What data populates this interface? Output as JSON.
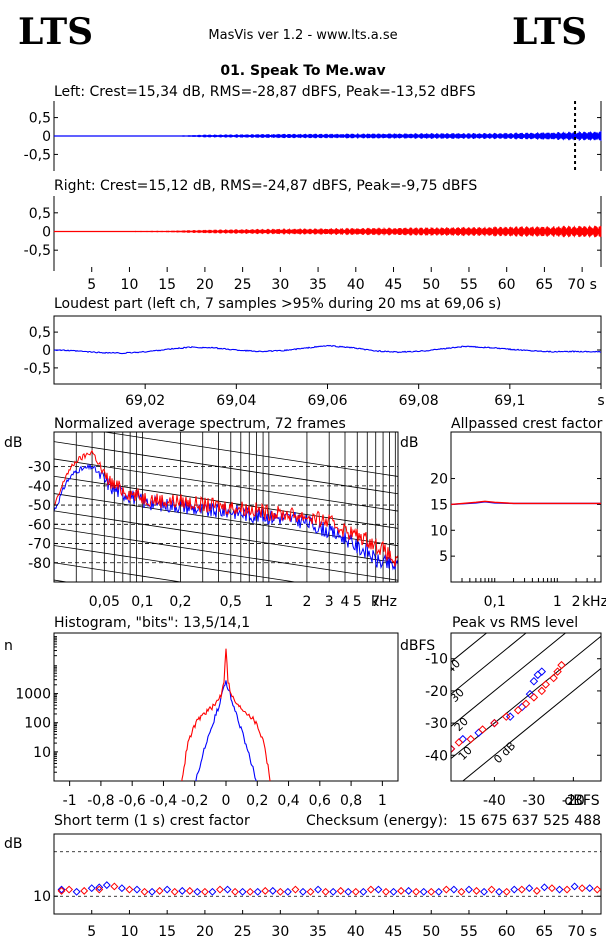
{
  "header": {
    "logo_left": "LTS",
    "logo_right": "LTS",
    "app_title": "MasVis ver 1.2 - www.lts.a.se",
    "file_name": "01. Speak To Me.wav"
  },
  "colors": {
    "left": "#0000ff",
    "right": "#ff0000",
    "axis": "#000000"
  },
  "chart_data": [
    {
      "type": "line",
      "title": "Left: Crest=15,34 dB, RMS=-28,87 dBFS, Peak=-13,52 dBFS",
      "series": [
        {
          "name": "Left",
          "color": "#0000ff",
          "envelope_x": [
            0,
            16,
            20,
            30,
            40,
            50,
            60,
            66,
            72
          ],
          "envelope_amp": [
            0.004,
            0.01,
            0.04,
            0.06,
            0.07,
            0.08,
            0.09,
            0.11,
            0.14
          ]
        }
      ],
      "xlim": [
        0,
        72.5
      ],
      "ylim": [
        -0.95,
        0.95
      ],
      "ytick_labels": [
        "0,5",
        "0",
        "-0,5"
      ],
      "ytick_values": [
        0.5,
        0,
        -0.5
      ],
      "marker_x": 69.06
    },
    {
      "type": "line",
      "title": "Right: Crest=15,12 dB, RMS=-24,87 dBFS, Peak=-9,75 dBFS",
      "series": [
        {
          "name": "Right",
          "color": "#ff0000",
          "envelope_x": [
            0,
            15,
            20,
            30,
            40,
            50,
            60,
            70,
            72
          ],
          "envelope_amp": [
            0.004,
            0.02,
            0.05,
            0.08,
            0.1,
            0.12,
            0.14,
            0.16,
            0.17
          ]
        }
      ],
      "xlim": [
        0,
        72.5
      ],
      "ylim": [
        -0.95,
        0.95
      ],
      "ytick_labels": [
        "0,5",
        "0",
        "-0,5"
      ],
      "ytick_values": [
        0.5,
        0,
        -0.5
      ],
      "xtick_labels": [
        "5",
        "10",
        "15",
        "20",
        "25",
        "30",
        "35",
        "40",
        "45",
        "50",
        "55",
        "60",
        "65",
        "70 s"
      ],
      "xtick_values": [
        5,
        10,
        15,
        20,
        25,
        30,
        35,
        40,
        45,
        50,
        55,
        60,
        65,
        70
      ]
    },
    {
      "type": "line",
      "title": "Loudest part (left  ch, 7 samples >95% during 20 ms at 69,06 s)",
      "series": [
        {
          "name": "Left",
          "color": "#0000ff",
          "x": [
            69.001,
            69.005,
            69.01,
            69.015,
            69.02,
            69.025,
            69.03,
            69.035,
            69.04,
            69.045,
            69.05,
            69.055,
            69.06,
            69.065,
            69.07,
            69.075,
            69.08,
            69.085,
            69.09,
            69.095,
            69.1,
            69.105,
            69.11,
            69.115,
            69.12
          ],
          "y": [
            0.0,
            -0.03,
            -0.07,
            -0.09,
            -0.05,
            0.02,
            0.08,
            0.06,
            0.0,
            -0.04,
            -0.02,
            0.05,
            0.12,
            0.07,
            -0.02,
            -0.06,
            -0.04,
            0.03,
            0.1,
            0.07,
            0.02,
            -0.02,
            -0.05,
            -0.04,
            -0.05
          ]
        }
      ],
      "xlim": [
        69.0,
        69.12
      ],
      "ylim": [
        -0.95,
        0.95
      ],
      "ytick_labels": [
        "0,5",
        "0",
        "-0,5"
      ],
      "ytick_values": [
        0.5,
        0,
        -0.5
      ],
      "xtick_labels": [
        "69,02",
        "69,04",
        "69,06",
        "69,08",
        "69,1",
        "s"
      ],
      "xtick_values": [
        69.02,
        69.04,
        69.06,
        69.08,
        69.1,
        69.12
      ]
    },
    {
      "type": "line",
      "title": "Normalized average spectrum, 72 frames",
      "ylabel": "dB",
      "xlabel": "kHz",
      "xscale": "log",
      "xlim": [
        0.02,
        10.5
      ],
      "ylim": [
        -90,
        -12
      ],
      "ytick_labels": [
        "-30",
        "-40",
        "-50",
        "-60",
        "-70",
        "-80"
      ],
      "ytick_values": [
        -30,
        -40,
        -50,
        -60,
        -70,
        -80
      ],
      "xtick_labels": [
        "0,05",
        "0,1",
        "0,2",
        "0,5",
        "1",
        "2",
        "3",
        "4",
        "5",
        "7",
        "kHz"
      ],
      "xtick_values": [
        0.05,
        0.1,
        0.2,
        0.5,
        1,
        2,
        3,
        4,
        5,
        7,
        10
      ],
      "series": [
        {
          "name": "Left",
          "color": "#0000ff",
          "x": [
            0.02,
            0.025,
            0.03,
            0.04,
            0.05,
            0.06,
            0.08,
            0.1,
            0.15,
            0.2,
            0.3,
            0.5,
            0.7,
            1,
            1.5,
            2,
            3,
            4,
            5,
            6,
            7,
            8,
            10
          ],
          "y": [
            -53,
            -38,
            -32,
            -30,
            -37,
            -42,
            -45,
            -48,
            -50,
            -50,
            -53,
            -53,
            -55,
            -56,
            -57,
            -59,
            -64,
            -67,
            -72,
            -74,
            -79,
            -80,
            -82
          ]
        },
        {
          "name": "Right",
          "color": "#ff0000",
          "x": [
            0.02,
            0.025,
            0.03,
            0.04,
            0.05,
            0.06,
            0.08,
            0.1,
            0.15,
            0.2,
            0.3,
            0.5,
            0.7,
            1,
            1.5,
            2,
            3,
            4,
            5,
            6,
            7,
            8,
            10
          ],
          "y": [
            -51,
            -34,
            -27,
            -22,
            -35,
            -40,
            -44,
            -46,
            -48,
            -48,
            -50,
            -51,
            -52,
            -54,
            -55,
            -56,
            -59,
            -63,
            -66,
            -68,
            -71,
            -73,
            -80
          ]
        }
      ]
    },
    {
      "type": "line",
      "title": "Allpassed crest factor",
      "ylabel": "dB",
      "xlabel": "kHz",
      "xscale": "log",
      "xlim": [
        0.02,
        5
      ],
      "ylim": [
        0,
        29
      ],
      "ytick_labels": [
        "20",
        "15",
        "10",
        "5"
      ],
      "ytick_values": [
        20,
        15,
        10,
        5
      ],
      "xtick_labels": [
        "0,1",
        "1",
        "2",
        "kHz"
      ],
      "xtick_values": [
        0.1,
        1,
        2,
        4
      ],
      "series": [
        {
          "name": "Left",
          "color": "#0000ff",
          "x": [
            0.02,
            0.05,
            0.07,
            0.1,
            0.2,
            0.5,
            1,
            2,
            5
          ],
          "y": [
            15,
            15.3,
            15.5,
            15.3,
            15.2,
            15.2,
            15.2,
            15.2,
            15.2
          ]
        },
        {
          "name": "Right",
          "color": "#ff0000",
          "x": [
            0.02,
            0.05,
            0.07,
            0.1,
            0.2,
            0.5,
            1,
            2,
            5
          ],
          "y": [
            15,
            15.4,
            15.6,
            15.4,
            15.2,
            15.2,
            15.2,
            15.2,
            15.2
          ]
        }
      ]
    },
    {
      "type": "line",
      "title": "Histogram, \"bits\": 13,5/14,1",
      "ylabel": "n",
      "yscale": "log",
      "xlim": [
        -1.1,
        1.1
      ],
      "ylim": [
        1,
        120000
      ],
      "ytick_labels": [
        "1000",
        "100",
        "10"
      ],
      "ytick_values": [
        1000,
        100,
        10
      ],
      "xtick_labels": [
        "-1",
        "-0,8",
        "-0,6",
        "-0,4",
        "-0,2",
        "0",
        "0,2",
        "0,4",
        "0,6",
        "0,8",
        "1"
      ],
      "xtick_values": [
        -1,
        -0.8,
        -0.6,
        -0.4,
        -0.2,
        0,
        0.2,
        0.4,
        0.6,
        0.8,
        1
      ],
      "series": [
        {
          "name": "Left",
          "color": "#0000ff",
          "x": [
            -0.19,
            -0.16,
            -0.12,
            -0.08,
            -0.04,
            -0.015,
            0,
            0.015,
            0.04,
            0.08,
            0.12,
            0.16,
            0.19
          ],
          "y": [
            1,
            4,
            20,
            90,
            400,
            1500,
            2500,
            1500,
            400,
            90,
            20,
            4,
            1
          ]
        },
        {
          "name": "Right",
          "color": "#ff0000",
          "x": [
            -0.28,
            -0.26,
            -0.22,
            -0.17,
            -0.12,
            -0.07,
            -0.03,
            -0.01,
            0,
            0.01,
            0.03,
            0.07,
            0.12,
            0.17,
            0.22,
            0.26,
            0.28
          ],
          "y": [
            1,
            5,
            40,
            140,
            250,
            400,
            900,
            3000,
            30000,
            3000,
            900,
            400,
            250,
            140,
            40,
            5,
            1
          ]
        }
      ]
    },
    {
      "type": "scatter",
      "title": "Peak vs RMS level",
      "ylabel": "dBFS",
      "xlabel": "dBFS",
      "xlim": [
        -51,
        -13
      ],
      "ylim": [
        -48,
        -2
      ],
      "ytick_labels": [
        "-10",
        "-20",
        "-30",
        "-40"
      ],
      "ytick_values": [
        -10,
        -20,
        -30,
        -40
      ],
      "xtick_labels": [
        "-40",
        "-30",
        "-20",
        "dBFS"
      ],
      "xtick_values": [
        -40,
        -30,
        -20,
        -15
      ],
      "crest_lines": [
        {
          "label": "0 dB",
          "crest": 0
        },
        {
          "label": "10",
          "crest": 10
        },
        {
          "label": "20",
          "crest": 20
        },
        {
          "label": "30",
          "crest": 30
        },
        {
          "label": "40",
          "crest": 40
        }
      ],
      "series": [
        {
          "name": "Left",
          "color": "#0000ff",
          "x": [
            -51,
            -48,
            -44,
            -40,
            -36,
            -33,
            -31,
            -30,
            -29,
            -28
          ],
          "y": [
            -38,
            -35,
            -33,
            -30,
            -28,
            -25,
            -21,
            -17,
            -15,
            -14
          ]
        },
        {
          "name": "Right",
          "color": "#ff0000",
          "x": [
            -51,
            -49,
            -46,
            -43,
            -40,
            -37,
            -34,
            -32,
            -30,
            -28,
            -27,
            -25,
            -24,
            -23
          ],
          "y": [
            -38,
            -36,
            -35,
            -32,
            -30,
            -28,
            -26,
            -24,
            -22,
            -20,
            -18,
            -16,
            -14,
            -12
          ]
        }
      ]
    },
    {
      "type": "scatter",
      "title": "Short term (1 s) crest factor",
      "ylabel": "dB",
      "checksum_label": "Checksum (energy):",
      "checksum_value": "15 675 637 525 488",
      "xlim": [
        0,
        72.5
      ],
      "ylim": [
        6,
        24
      ],
      "ytick_labels": [
        "10"
      ],
      "ytick_values": [
        10
      ],
      "dashed_lines": [
        10,
        20
      ],
      "xtick_labels": [
        "5",
        "10",
        "15",
        "20",
        "25",
        "30",
        "35",
        "40",
        "45",
        "50",
        "55",
        "60",
        "65",
        "70 s"
      ],
      "xtick_values": [
        5,
        10,
        15,
        20,
        25,
        30,
        35,
        40,
        45,
        50,
        55,
        60,
        65,
        70
      ],
      "series": [
        {
          "name": "Left",
          "color": "#0000ff",
          "x": [
            1,
            3,
            5,
            6,
            7,
            9,
            11,
            13,
            15,
            17,
            19,
            21,
            23,
            25,
            27,
            29,
            31,
            33,
            35,
            37,
            39,
            41,
            43,
            45,
            47,
            49,
            51,
            53,
            55,
            57,
            59,
            61,
            63,
            65,
            67,
            69,
            71
          ],
          "y": [
            11.5,
            11,
            11.8,
            12,
            12.5,
            11.8,
            11.5,
            11,
            11.5,
            11.2,
            11,
            11,
            11.5,
            11,
            11,
            11.2,
            11,
            11,
            11.5,
            11,
            11,
            11,
            11.5,
            11,
            11.2,
            11,
            11,
            11.5,
            11.5,
            11,
            11,
            11.5,
            11.8,
            12,
            11.5,
            12.2,
            11.8
          ]
        },
        {
          "name": "Right",
          "color": "#ff0000",
          "x": [
            1,
            2,
            4,
            6,
            8,
            10,
            12,
            14,
            16,
            18,
            20,
            22,
            24,
            26,
            28,
            30,
            32,
            34,
            36,
            38,
            40,
            42,
            44,
            46,
            48,
            50,
            52,
            54,
            56,
            58,
            60,
            62,
            64,
            66,
            68,
            70,
            72
          ],
          "y": [
            11.2,
            11.5,
            11.2,
            11.5,
            12.2,
            11.5,
            11,
            11.2,
            11,
            11.2,
            11,
            11.5,
            11,
            11,
            11.2,
            11,
            11.5,
            11,
            11,
            11.2,
            11,
            11.5,
            11,
            11.2,
            11,
            11,
            11.5,
            11,
            11.2,
            11.5,
            11,
            11.5,
            11.2,
            11.8,
            11.5,
            11.8,
            11.5
          ]
        }
      ]
    }
  ]
}
